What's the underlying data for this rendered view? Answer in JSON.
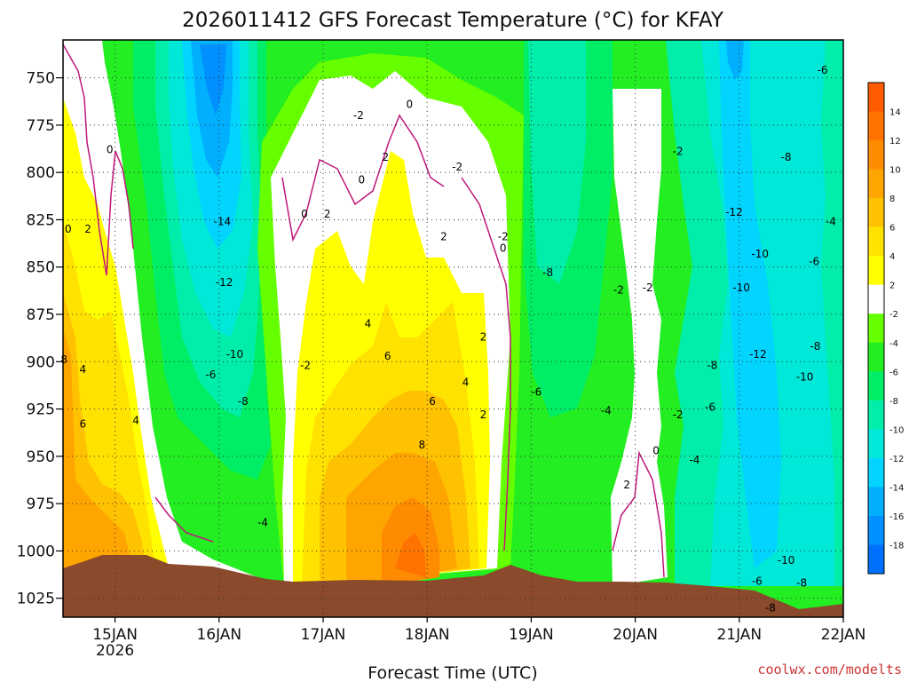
{
  "chart_data": {
    "type": "heatmap",
    "title": "2026011412 GFS Forecast Temperature (°C) for KFAY",
    "xlabel": "Forecast Time (UTC)",
    "ylabel": "",
    "source": "coolwx.com/modelts",
    "y_axis": {
      "ticks": [
        750,
        775,
        800,
        825,
        850,
        875,
        900,
        925,
        950,
        975,
        1000,
        1025
      ],
      "range": [
        1035,
        730
      ],
      "units": "hPa"
    },
    "x_axis": {
      "ticks": [
        {
          "label": "15JAN",
          "sublabel": "2026",
          "day": 1
        },
        {
          "label": "16JAN",
          "sublabel": "",
          "day": 2
        },
        {
          "label": "17JAN",
          "sublabel": "",
          "day": 3
        },
        {
          "label": "18JAN",
          "sublabel": "",
          "day": 4
        },
        {
          "label": "19JAN",
          "sublabel": "",
          "day": 5
        },
        {
          "label": "20JAN",
          "sublabel": "",
          "day": 6
        },
        {
          "label": "21JAN",
          "sublabel": "",
          "day": 7
        },
        {
          "label": "22JAN",
          "sublabel": "",
          "day": 8
        }
      ],
      "range": [
        0.5,
        8.0
      ],
      "units": "days since 14JAN 00Z"
    },
    "colorbar": {
      "labels": [
        "14",
        "12",
        "10",
        "8",
        "6",
        "4",
        "2",
        "-2",
        "-4",
        "-6",
        "-8",
        "-10",
        "-12",
        "-14",
        "-16",
        "-18"
      ],
      "bins": [
        {
          "min": 14,
          "max": 16,
          "color": "#ff5a00"
        },
        {
          "min": 12,
          "max": 14,
          "color": "#ff7300"
        },
        {
          "min": 10,
          "max": 12,
          "color": "#ff8c00"
        },
        {
          "min": 8,
          "max": 10,
          "color": "#ffa500"
        },
        {
          "min": 6,
          "max": 8,
          "color": "#ffc200"
        },
        {
          "min": 4,
          "max": 6,
          "color": "#ffe200"
        },
        {
          "min": 2,
          "max": 4,
          "color": "#ffff00"
        },
        {
          "min": -2,
          "max": 2,
          "color": "#ffffff"
        },
        {
          "min": -4,
          "max": -2,
          "color": "#66ff00"
        },
        {
          "min": -6,
          "max": -4,
          "color": "#22ee22"
        },
        {
          "min": -8,
          "max": -6,
          "color": "#00ee66"
        },
        {
          "min": -10,
          "max": -8,
          "color": "#00eeaa"
        },
        {
          "min": -12,
          "max": -10,
          "color": "#00e8d8"
        },
        {
          "min": -14,
          "max": -12,
          "color": "#00d4ff"
        },
        {
          "min": -16,
          "max": -14,
          "color": "#00b0ff"
        },
        {
          "min": -18,
          "max": -16,
          "color": "#0090ff"
        },
        {
          "min": -20,
          "max": -18,
          "color": "#0070ff"
        }
      ]
    },
    "terrain_color": "#8b4a2b",
    "freezing_line_color": "#c0177a",
    "contour_labels": [
      {
        "text": "0",
        "day": 0.55,
        "p": 830
      },
      {
        "text": "2",
        "day": 0.74,
        "p": 830
      },
      {
        "text": "0",
        "day": 0.95,
        "p": 788
      },
      {
        "text": "8",
        "day": 0.51,
        "p": 899
      },
      {
        "text": "4",
        "day": 0.69,
        "p": 904
      },
      {
        "text": "4",
        "day": 1.2,
        "p": 931
      },
      {
        "text": "6",
        "day": 0.69,
        "p": 933
      },
      {
        "text": "-14",
        "day": 2.03,
        "p": 826
      },
      {
        "text": "-12",
        "day": 2.05,
        "p": 858
      },
      {
        "text": "-10",
        "day": 2.15,
        "p": 896
      },
      {
        "text": "-6",
        "day": 1.92,
        "p": 907
      },
      {
        "text": "-8",
        "day": 2.23,
        "p": 921
      },
      {
        "text": "-4",
        "day": 2.42,
        "p": 985
      },
      {
        "text": "-2",
        "day": 2.83,
        "p": 902
      },
      {
        "text": "0",
        "day": 2.82,
        "p": 822
      },
      {
        "text": "2",
        "day": 3.04,
        "p": 822
      },
      {
        "text": "0",
        "day": 3.37,
        "p": 804
      },
      {
        "text": "2",
        "day": 3.6,
        "p": 792
      },
      {
        "text": "-2",
        "day": 3.34,
        "p": 770
      },
      {
        "text": "0",
        "day": 3.83,
        "p": 764
      },
      {
        "text": "-2",
        "day": 4.29,
        "p": 797
      },
      {
        "text": "2",
        "day": 4.16,
        "p": 834
      },
      {
        "text": "4",
        "day": 3.43,
        "p": 880
      },
      {
        "text": "6",
        "day": 3.62,
        "p": 897
      },
      {
        "text": "4",
        "day": 4.37,
        "p": 911
      },
      {
        "text": "6",
        "day": 4.05,
        "p": 921
      },
      {
        "text": "8",
        "day": 3.95,
        "p": 944
      },
      {
        "text": "2",
        "day": 4.54,
        "p": 887
      },
      {
        "text": "2",
        "day": 4.54,
        "p": 928
      },
      {
        "text": "-2",
        "day": 4.73,
        "p": 834
      },
      {
        "text": "0",
        "day": 4.73,
        "p": 840
      },
      {
        "text": "-8",
        "day": 5.16,
        "p": 853
      },
      {
        "text": "-6",
        "day": 5.05,
        "p": 916
      },
      {
        "text": "-4",
        "day": 5.72,
        "p": 926
      },
      {
        "text": "-2",
        "day": 5.84,
        "p": 862
      },
      {
        "text": "-2",
        "day": 6.12,
        "p": 861
      },
      {
        "text": "2",
        "day": 5.92,
        "p": 965
      },
      {
        "text": "0",
        "day": 6.2,
        "p": 947
      },
      {
        "text": "-2",
        "day": 6.41,
        "p": 928
      },
      {
        "text": "-2",
        "day": 6.41,
        "p": 789
      },
      {
        "text": "-4",
        "day": 6.57,
        "p": 952
      },
      {
        "text": "-6",
        "day": 6.72,
        "p": 924
      },
      {
        "text": "-8",
        "day": 6.74,
        "p": 902
      },
      {
        "text": "-12",
        "day": 6.95,
        "p": 821
      },
      {
        "text": "-10",
        "day": 7.02,
        "p": 861
      },
      {
        "text": "-10",
        "day": 7.2,
        "p": 843
      },
      {
        "text": "-12",
        "day": 7.18,
        "p": 896
      },
      {
        "text": "-8",
        "day": 7.45,
        "p": 792
      },
      {
        "text": "-6",
        "day": 7.8,
        "p": 746
      },
      {
        "text": "-4",
        "day": 7.88,
        "p": 826
      },
      {
        "text": "-6",
        "day": 7.72,
        "p": 847
      },
      {
        "text": "-8",
        "day": 7.73,
        "p": 892
      },
      {
        "text": "-10",
        "day": 7.63,
        "p": 908
      },
      {
        "text": "-10",
        "day": 7.45,
        "p": 1005
      },
      {
        "text": "-6",
        "day": 7.17,
        "p": 1016
      },
      {
        "text": "-8",
        "day": 7.3,
        "p": 1030
      },
      {
        "text": "-8",
        "day": 7.6,
        "p": 1017
      }
    ]
  }
}
